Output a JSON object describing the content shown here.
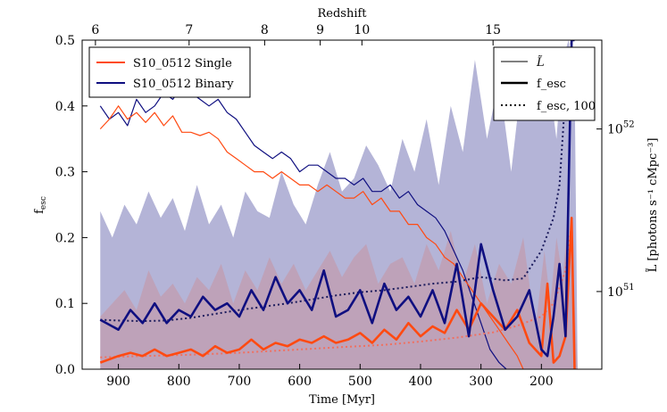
{
  "chart_data": {
    "type": "line",
    "xlabel": "Time [Myr]",
    "ylabel": "f_esc",
    "ylabel_right": "L̃ [photons s⁻¹ cMpc⁻³]",
    "top_axis_label": "Redshift",
    "xlim": [
      960,
      100
    ],
    "ylim": [
      0,
      0.5
    ],
    "x_ticks": [
      900,
      800,
      700,
      600,
      500,
      400,
      300,
      200
    ],
    "y_ticks": [
      "0.0",
      "0.1",
      "0.2",
      "0.3",
      "0.4",
      "0.5"
    ],
    "top_ticks": [
      {
        "label": "6",
        "x": 938
      },
      {
        "label": "7",
        "x": 783
      },
      {
        "label": "8",
        "x": 658
      },
      {
        "label": "9",
        "x": 566
      },
      {
        "label": "10",
        "x": 497
      },
      {
        "label": "15",
        "x": 280
      }
    ],
    "right_ticks": [
      {
        "label": "10^52",
        "y": 0.365
      },
      {
        "label": "10^51",
        "y": 0.118
      }
    ],
    "legend_models": [
      {
        "name": "S10_0512 Single",
        "color": "#ff4a12"
      },
      {
        "name": "S10_0512 Binary",
        "color": "#0f0f80"
      }
    ],
    "legend_styles": [
      {
        "name": "L̃",
        "style": "thin"
      },
      {
        "name": "f_esc",
        "style": "thick"
      },
      {
        "name": "f_esc, 100",
        "style": "dotted"
      }
    ],
    "series": [
      {
        "name": "S10_0512 Binary",
        "quantity": "f_esc",
        "color": "#0f0f80",
        "x": [
          930,
          900,
          880,
          860,
          840,
          820,
          800,
          780,
          760,
          740,
          720,
          700,
          680,
          660,
          640,
          620,
          600,
          580,
          560,
          540,
          520,
          500,
          480,
          460,
          440,
          420,
          400,
          380,
          360,
          340,
          320,
          300,
          280,
          260,
          240,
          220,
          200,
          190,
          180,
          170,
          160,
          150,
          145
        ],
        "values": [
          0.075,
          0.06,
          0.09,
          0.07,
          0.1,
          0.07,
          0.09,
          0.08,
          0.11,
          0.09,
          0.1,
          0.08,
          0.12,
          0.09,
          0.14,
          0.1,
          0.12,
          0.09,
          0.15,
          0.08,
          0.09,
          0.12,
          0.07,
          0.13,
          0.09,
          0.11,
          0.08,
          0.12,
          0.07,
          0.16,
          0.05,
          0.19,
          0.12,
          0.06,
          0.08,
          0.12,
          0.03,
          0.02,
          0.08,
          0.16,
          0.05,
          0.5,
          0.5
        ]
      },
      {
        "name": "S10_0512 Single",
        "quantity": "f_esc",
        "color": "#ff4a12",
        "x": [
          930,
          900,
          880,
          860,
          840,
          820,
          800,
          780,
          760,
          740,
          720,
          700,
          680,
          660,
          640,
          620,
          600,
          580,
          560,
          540,
          520,
          500,
          480,
          460,
          440,
          420,
          400,
          380,
          360,
          340,
          320,
          300,
          280,
          260,
          240,
          220,
          200,
          190,
          180,
          170,
          160,
          150,
          145
        ],
        "values": [
          0.01,
          0.02,
          0.025,
          0.02,
          0.03,
          0.02,
          0.025,
          0.03,
          0.02,
          0.035,
          0.025,
          0.03,
          0.045,
          0.03,
          0.04,
          0.035,
          0.045,
          0.04,
          0.05,
          0.04,
          0.045,
          0.055,
          0.04,
          0.06,
          0.045,
          0.07,
          0.05,
          0.065,
          0.055,
          0.09,
          0.06,
          0.1,
          0.08,
          0.06,
          0.09,
          0.04,
          0.02,
          0.13,
          0.01,
          0.02,
          0.05,
          0.23,
          0.0
        ]
      },
      {
        "name": "S10_0512 Binary",
        "quantity": "f_esc, 100",
        "color": "#1b1b5c",
        "x": [
          930,
          900,
          860,
          820,
          780,
          740,
          700,
          660,
          620,
          580,
          540,
          500,
          460,
          420,
          380,
          340,
          300,
          260,
          230,
          200,
          180,
          170,
          160,
          150
        ],
        "values": [
          0.075,
          0.074,
          0.073,
          0.074,
          0.078,
          0.084,
          0.09,
          0.095,
          0.1,
          0.106,
          0.112,
          0.117,
          0.12,
          0.125,
          0.13,
          0.133,
          0.14,
          0.135,
          0.138,
          0.18,
          0.23,
          0.28,
          0.42,
          0.5
        ]
      },
      {
        "name": "S10_0512 Single",
        "quantity": "f_esc, 100",
        "color": "#f07060",
        "x": [
          930,
          860,
          780,
          700,
          620,
          540,
          460,
          400,
          340,
          280,
          240,
          200,
          180,
          160,
          150
        ],
        "values": [
          0.018,
          0.02,
          0.022,
          0.025,
          0.029,
          0.033,
          0.037,
          0.042,
          0.048,
          0.056,
          0.066,
          0.08,
          0.1,
          0.15,
          0.22
        ]
      },
      {
        "name": "S10_0512 Binary",
        "quantity": "L̃",
        "color": "#0f0f80",
        "x": [
          930,
          915,
          900,
          885,
          870,
          855,
          840,
          825,
          810,
          795,
          780,
          765,
          750,
          735,
          720,
          705,
          690,
          675,
          660,
          645,
          630,
          615,
          600,
          585,
          570,
          555,
          540,
          525,
          510,
          495,
          480,
          465,
          450,
          435,
          420,
          405,
          390,
          375,
          360,
          345,
          330,
          315,
          300,
          285,
          270,
          258
        ],
        "values": [
          0.4,
          0.38,
          0.39,
          0.37,
          0.41,
          0.39,
          0.4,
          0.42,
          0.41,
          0.43,
          0.42,
          0.41,
          0.4,
          0.41,
          0.39,
          0.38,
          0.36,
          0.34,
          0.33,
          0.32,
          0.33,
          0.32,
          0.3,
          0.31,
          0.31,
          0.3,
          0.29,
          0.29,
          0.28,
          0.29,
          0.27,
          0.27,
          0.28,
          0.26,
          0.27,
          0.25,
          0.24,
          0.23,
          0.21,
          0.18,
          0.15,
          0.11,
          0.07,
          0.03,
          0.01,
          0.0
        ]
      },
      {
        "name": "S10_0512 Single",
        "quantity": "L̃",
        "color": "#ff4a12",
        "x": [
          930,
          915,
          900,
          885,
          870,
          855,
          840,
          825,
          810,
          795,
          780,
          765,
          750,
          735,
          720,
          705,
          690,
          675,
          660,
          645,
          630,
          615,
          600,
          585,
          570,
          555,
          540,
          525,
          510,
          495,
          480,
          465,
          450,
          435,
          420,
          405,
          390,
          375,
          360,
          345,
          330,
          315,
          300,
          285,
          270,
          255,
          240,
          230
        ],
        "values": [
          0.365,
          0.38,
          0.4,
          0.38,
          0.39,
          0.375,
          0.39,
          0.37,
          0.385,
          0.36,
          0.36,
          0.355,
          0.36,
          0.35,
          0.33,
          0.32,
          0.31,
          0.3,
          0.3,
          0.29,
          0.3,
          0.29,
          0.28,
          0.28,
          0.27,
          0.28,
          0.27,
          0.26,
          0.26,
          0.27,
          0.25,
          0.26,
          0.24,
          0.24,
          0.22,
          0.22,
          0.2,
          0.19,
          0.17,
          0.16,
          0.14,
          0.12,
          0.1,
          0.08,
          0.06,
          0.04,
          0.02,
          0.0
        ]
      }
    ],
    "bands": [
      {
        "name": "S10_0512 Binary",
        "color": "#6a6ab0",
        "opacity": 0.5,
        "x": [
          930,
          910,
          890,
          870,
          850,
          830,
          810,
          790,
          770,
          750,
          730,
          710,
          690,
          670,
          650,
          630,
          610,
          590,
          570,
          550,
          530,
          510,
          490,
          470,
          450,
          430,
          410,
          390,
          370,
          350,
          330,
          310,
          290,
          270,
          250,
          230,
          210,
          195,
          185,
          175,
          165,
          155,
          145,
          140
        ],
        "values": [
          0.24,
          0.2,
          0.25,
          0.22,
          0.27,
          0.23,
          0.26,
          0.21,
          0.28,
          0.22,
          0.25,
          0.2,
          0.27,
          0.24,
          0.23,
          0.3,
          0.25,
          0.22,
          0.28,
          0.33,
          0.27,
          0.29,
          0.34,
          0.31,
          0.27,
          0.35,
          0.3,
          0.38,
          0.28,
          0.4,
          0.33,
          0.47,
          0.35,
          0.44,
          0.3,
          0.46,
          0.4,
          0.38,
          0.42,
          0.35,
          0.47,
          0.5,
          0.44,
          0.0
        ]
      },
      {
        "name": "S10_0512 Single",
        "color": "#d08080",
        "opacity": 0.35,
        "x": [
          930,
          910,
          890,
          870,
          850,
          830,
          810,
          790,
          770,
          750,
          730,
          710,
          690,
          670,
          650,
          630,
          610,
          590,
          570,
          550,
          530,
          510,
          490,
          470,
          450,
          430,
          410,
          390,
          370,
          350,
          330,
          310,
          290,
          270,
          250,
          230,
          210,
          195,
          185,
          175,
          165,
          155,
          145,
          140
        ],
        "values": [
          0.08,
          0.1,
          0.12,
          0.09,
          0.15,
          0.11,
          0.13,
          0.1,
          0.14,
          0.12,
          0.16,
          0.1,
          0.15,
          0.12,
          0.17,
          0.13,
          0.16,
          0.12,
          0.15,
          0.18,
          0.14,
          0.17,
          0.19,
          0.13,
          0.16,
          0.17,
          0.13,
          0.19,
          0.15,
          0.21,
          0.13,
          0.19,
          0.1,
          0.16,
          0.13,
          0.2,
          0.06,
          0.18,
          0.1,
          0.2,
          0.14,
          0.23,
          0.1,
          0.0
        ]
      }
    ]
  }
}
